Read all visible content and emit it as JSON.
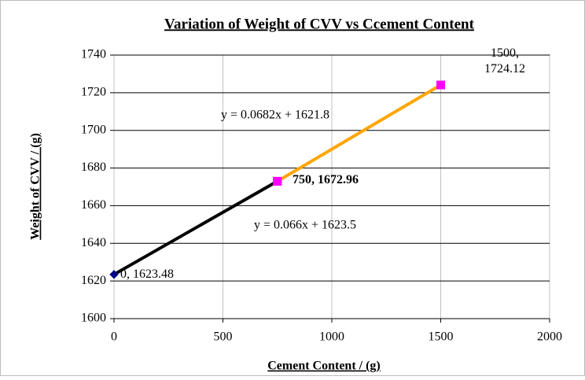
{
  "chart_data": {
    "type": "line",
    "title": "Variation of Weight of CVV vs Ccement Content",
    "x_label": "Cement Content / (g)",
    "y_label": "Weight of CVV / (g)",
    "xlim": [
      0,
      2000
    ],
    "xticks": [
      0,
      500,
      1000,
      1500,
      2000
    ],
    "ylim": [
      1600,
      1740
    ],
    "yticks": [
      1600,
      1620,
      1640,
      1660,
      1680,
      1700,
      1720,
      1740
    ],
    "grid": true,
    "series": [
      {
        "color": "#000000",
        "x": [
          0,
          750
        ],
        "values": [
          1623.48,
          1672.96
        ],
        "marker_colors": [
          "#00008b",
          "#ff00ff"
        ],
        "value_labels": [
          "0, 1623.48",
          "750, 1672.96"
        ]
      },
      {
        "color": "#ffa500",
        "x": [
          750,
          1500
        ],
        "values": [
          1672.96,
          1724.12
        ],
        "marker_colors": [
          "#ff00ff",
          "#ff00ff"
        ],
        "value_labels": [
          null,
          "1500, 1724.12"
        ]
      }
    ],
    "annotations": [
      "y = 0.0682x + 1621.8",
      "y = 0.066x + 1623.5"
    ]
  }
}
